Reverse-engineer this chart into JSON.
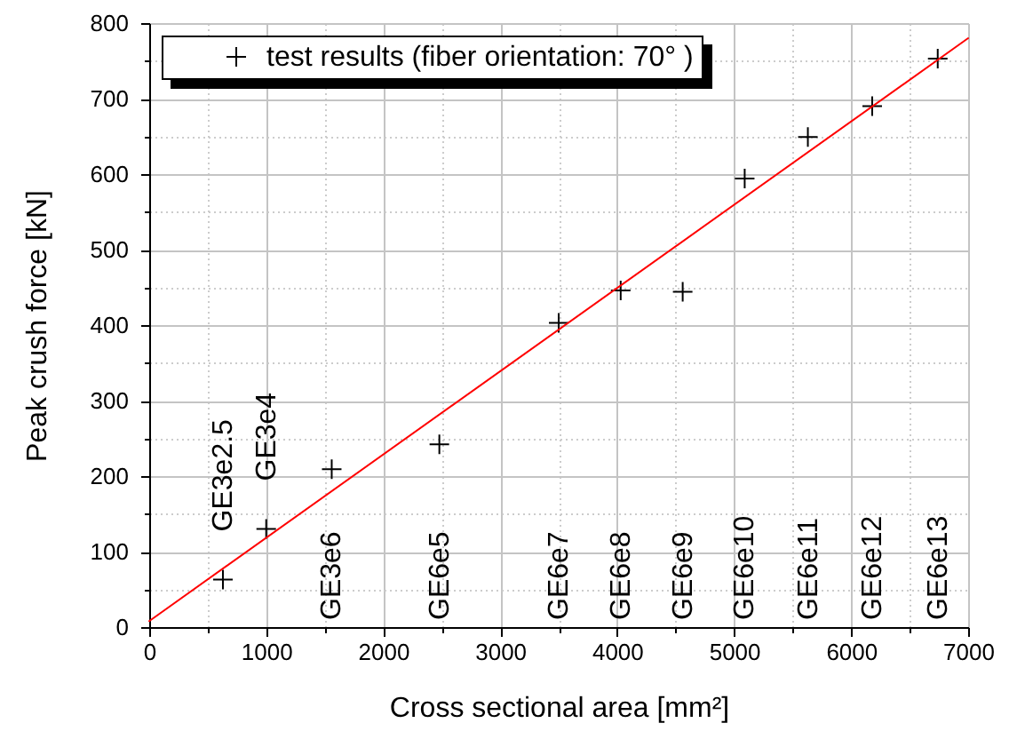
{
  "chart_data": {
    "type": "scatter",
    "xlabel": "Cross sectional area [mm²]",
    "ylabel": "Peak crush force [kN]",
    "xlim": [
      0,
      7000
    ],
    "ylim": [
      0,
      800
    ],
    "xticks": [
      0,
      {
        "value": 500,
        "label": null
      },
      1000,
      {
        "value": 1500,
        "label": null
      },
      2000,
      {
        "value": 2500,
        "label": null
      },
      3000,
      {
        "value": 3500,
        "label": null
      },
      4000,
      {
        "value": 4500,
        "label": null
      },
      5000,
      {
        "value": 5500,
        "label": null
      },
      6000,
      {
        "value": 6500,
        "label": null
      },
      7000
    ],
    "yticks": [
      0,
      {
        "value": 50,
        "label": null
      },
      100,
      {
        "value": 150,
        "label": null
      },
      200,
      {
        "value": 250,
        "label": null
      },
      300,
      {
        "value": 350,
        "label": null
      },
      400,
      {
        "value": 450,
        "label": null
      },
      500,
      {
        "value": 550,
        "label": null
      },
      600,
      {
        "value": 650,
        "label": null
      },
      700,
      {
        "value": 750,
        "label": null
      },
      800
    ],
    "grid": true,
    "legend": "top left",
    "series": [
      {
        "name": "test results (fiber orientation: 70° )",
        "marker": "cross",
        "color": "#000000",
        "x": [
          630,
          1000,
          1560,
          2480,
          3500,
          4030,
          4560,
          5090,
          5630,
          6180,
          6740
        ],
        "values": [
          63,
          130,
          209,
          242,
          403,
          446,
          444,
          594,
          649,
          690,
          753
        ]
      },
      {
        "type": "line",
        "color": "#ff0000",
        "x": [
          0,
          7000
        ],
        "values": [
          8,
          780
        ]
      }
    ],
    "annotations": [
      {
        "text": "GE3e2.5",
        "x": 630,
        "y": 63
      },
      {
        "text": "GE3e4",
        "x": 1000,
        "y": 130
      },
      "GE3e6",
      "GE6e5",
      "GE6e7",
      "GE6e8",
      "GE6e9",
      "GE6e10",
      "GE6e11",
      "GE6e12",
      "GE6e13"
    ]
  }
}
